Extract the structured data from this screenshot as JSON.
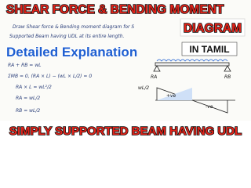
{
  "header": {
    "title": "SHEAR FORCE & BENDING MOMENT",
    "badge": "DIAGRAM"
  },
  "question": [
    "Draw Shear force & Bending moment diagram for S",
    "Supported Beam having UDL at its entire length."
  ],
  "subtitle": "Detailed Explanation",
  "language_badge": "IN TAMIL",
  "equations": [
    "RA + RB = wL",
    "ΣMB = 0, (RA × L) − (wL × L/2) = 0",
    "RA × L = wL²/2",
    "RA = wL/2",
    "RB = wL/2"
  ],
  "diagram_labels": {
    "left_reaction": "RA",
    "right_reaction": "RB",
    "positive": "+ve",
    "negative": "-ve",
    "shear": "wL/2"
  },
  "footer": {
    "title": "SIMPLY SUPPORTED BEAM HAVING UDL"
  }
}
